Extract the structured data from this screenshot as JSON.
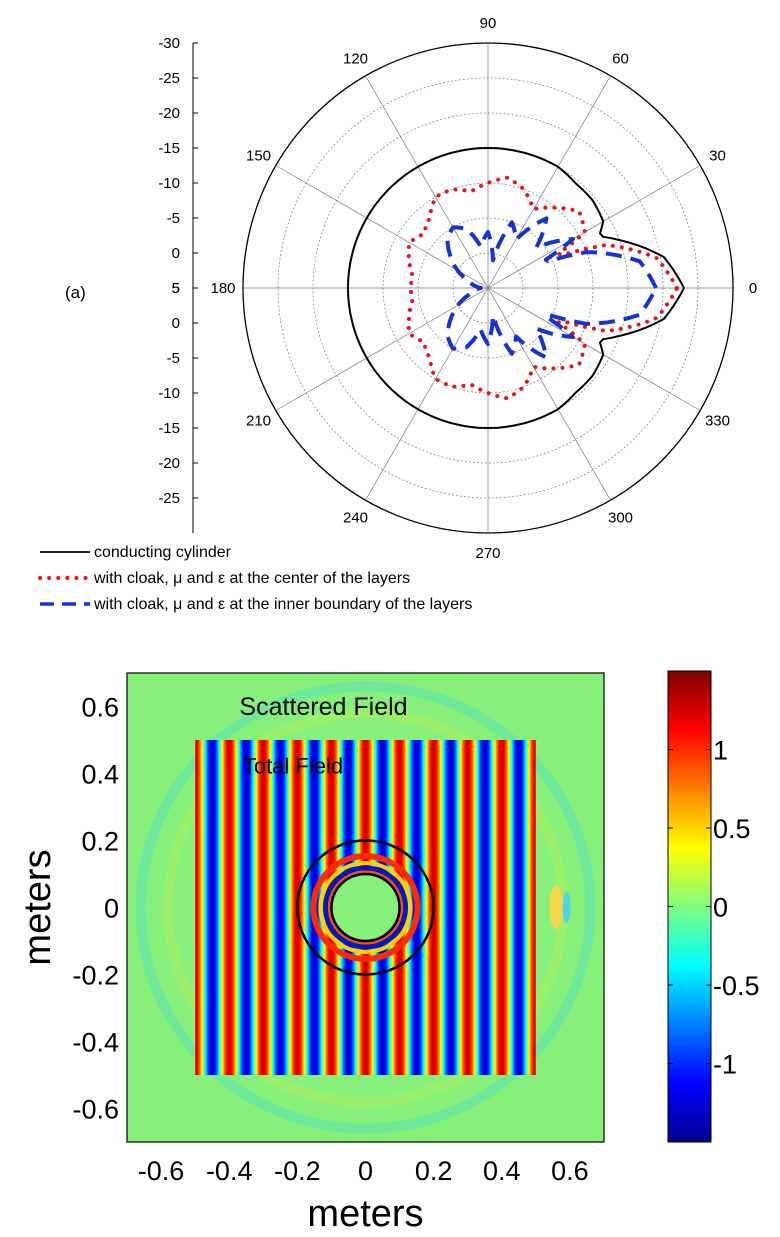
{
  "figure": {
    "panel_a_label": "(a)",
    "legend": {
      "solid": "conducting cylinder",
      "dotted": "with cloak, μ and ε at the center of the layers",
      "dashed": "with cloak, μ and ε at the inner boundary of the layers"
    }
  },
  "colors": {
    "conducting": "#000000",
    "center_layers": "#e8141b",
    "inner_boundary": "#1432d8",
    "grid": "#777777"
  },
  "chart_data": [
    {
      "type": "polar",
      "radial_axis": {
        "ticks": [
          5,
          0,
          -5,
          -10,
          -15,
          -20,
          -25,
          -30
        ],
        "range_db": [
          -30,
          5
        ],
        "grid_circles": true
      },
      "angular_axis": {
        "ticks_deg": [
          0,
          30,
          60,
          90,
          120,
          150,
          180,
          210,
          240,
          270,
          300,
          330
        ]
      },
      "series": [
        {
          "name": "conducting cylinder",
          "style": "solid",
          "angles_deg": [
            0,
            10,
            20,
            25,
            30,
            40,
            50,
            60,
            70,
            80,
            90,
            100,
            110,
            120,
            130,
            140,
            150,
            160,
            170,
            180
          ],
          "values_db": [
            -2,
            -4.5,
            -10,
            -12.5,
            -11,
            -10.5,
            -10.5,
            -10,
            -10,
            -10,
            -10,
            -10,
            -10,
            -10,
            -10,
            -10,
            -10,
            -10,
            -10,
            -10
          ]
        },
        {
          "name": "with cloak, μ and ε at the center of the layers",
          "style": "dotted",
          "angles_deg": [
            0,
            10,
            20,
            25,
            30,
            40,
            50,
            60,
            70,
            80,
            90,
            100,
            110,
            120,
            130,
            140,
            150,
            160,
            170,
            180
          ],
          "values_db": [
            -3,
            -5.5,
            -12,
            -20,
            -14,
            -13,
            -15,
            -17,
            -15,
            -14,
            -15,
            -16,
            -15,
            -15,
            -17,
            -18,
            -17,
            -18,
            -19,
            -19
          ]
        },
        {
          "name": "with cloak, μ and ε at the inner boundary of the layers",
          "style": "dashed",
          "angles_deg": [
            0,
            10,
            20,
            25,
            30,
            40,
            50,
            60,
            70,
            80,
            90,
            100,
            110,
            120,
            130,
            140,
            150,
            160,
            170,
            180
          ],
          "values_db": [
            -6,
            -8,
            -15,
            -22,
            -16,
            -21,
            -17,
            -22,
            -20,
            -26,
            -22,
            -24,
            -21,
            -20,
            -21,
            -23,
            -25,
            -27,
            -28,
            -29
          ]
        }
      ]
    },
    {
      "type": "heatmap",
      "annotations": [
        "Scattered Field",
        "Total Field"
      ],
      "xlabel": "meters",
      "ylabel": "meters",
      "xlim": [
        -0.7,
        0.7
      ],
      "ylim": [
        -0.7,
        0.7
      ],
      "x_ticks": [
        "-0.6",
        "-0.4",
        "-0.2",
        "0",
        "0.2",
        "0.4",
        "0.6"
      ],
      "y_ticks": [
        "0.6",
        "0.4",
        "0.2",
        "0",
        "-0.2",
        "-0.4",
        "-0.6"
      ],
      "total_field_region": [
        -0.5,
        0.5
      ],
      "inner_cylinder_radius": 0.1,
      "cloak_outer_radius": 0.2,
      "wavelength": 0.1,
      "colorbar": {
        "ticks": [
          "1",
          "0.5",
          "0",
          "-0.5",
          "-1"
        ],
        "range": [
          -1.5,
          1.5
        ],
        "colormap": "jet"
      }
    }
  ]
}
